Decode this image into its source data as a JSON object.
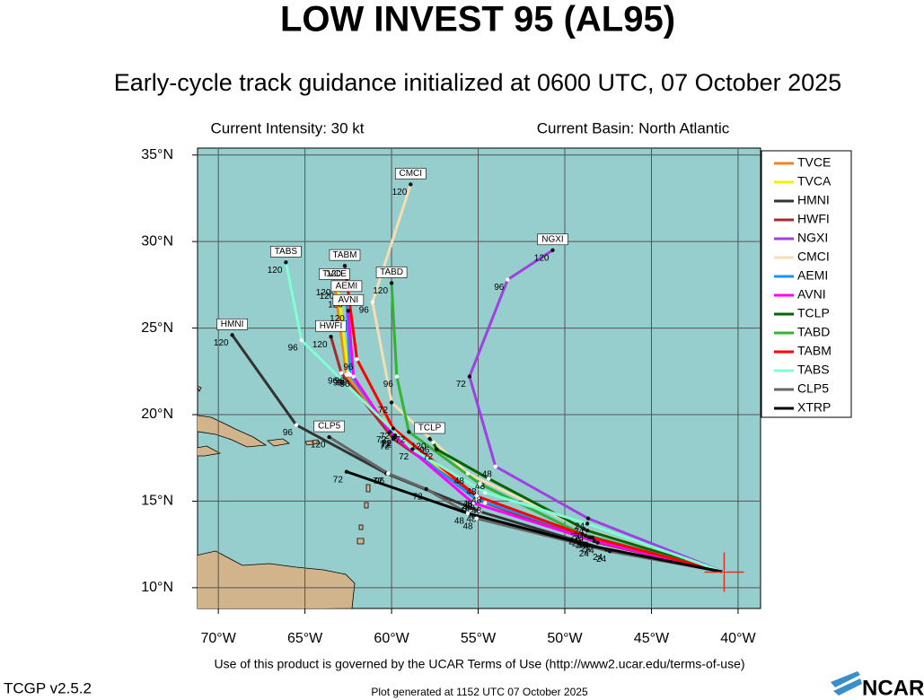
{
  "chart_data": {
    "type": "track",
    "title": "LOW INVEST 95 (AL95)",
    "subtitle": "Early-cycle track guidance initialized at 0600 UTC, 07 October 2025",
    "annotations": [
      "Current Intensity: 30 kt",
      "Current Basin: North Atlantic"
    ],
    "xlim": [
      -71.2,
      -38.7
    ],
    "ylim": [
      8.8,
      35.4
    ],
    "xticks": [
      {
        "value": -70,
        "label": "70°W"
      },
      {
        "value": -65,
        "label": "65°W"
      },
      {
        "value": -60,
        "label": "60°W"
      },
      {
        "value": -55,
        "label": "55°W"
      },
      {
        "value": -50,
        "label": "50°W"
      },
      {
        "value": -45,
        "label": "45°W"
      },
      {
        "value": -40,
        "label": "40°W"
      }
    ],
    "yticks": [
      {
        "value": 10,
        "label": "10°N"
      },
      {
        "value": 15,
        "label": "15°N"
      },
      {
        "value": 20,
        "label": "20°N"
      },
      {
        "value": 25,
        "label": "25°N"
      },
      {
        "value": 30,
        "label": "30°N"
      },
      {
        "value": 35,
        "label": "35°N"
      }
    ],
    "grid": true,
    "point_labels": [
      null,
      24,
      48,
      72,
      96,
      120
    ],
    "series": [
      {
        "name": "TVCE",
        "color": "#e8862a",
        "end_label": true,
        "x": [
          -40.8,
          -48.6,
          -55.1,
          -59.9,
          -62.6,
          -63.3
        ],
        "values": [
          10.9,
          12.9,
          15.1,
          18.7,
          22.3,
          27.5
        ]
      },
      {
        "name": "TVCA",
        "color": "#f2f200",
        "end_label": false,
        "x": [
          -40.8,
          -48.5,
          -55.0,
          -59.8,
          -62.5,
          -63.1
        ],
        "values": [
          10.9,
          12.9,
          15.2,
          18.8,
          22.4,
          27.3
        ]
      },
      {
        "name": "HMNI",
        "color": "#333333",
        "end_label": true,
        "x": [
          -40.8,
          -47.6,
          -54.9,
          -60.3,
          -65.5,
          -69.2
        ],
        "values": [
          10.9,
          12.2,
          14.4,
          16.6,
          19.4,
          24.6
        ]
      },
      {
        "name": "HWFI",
        "color": "#a52a2a",
        "end_label": true,
        "x": [
          -40.8,
          -48.1,
          -54.6,
          -59.9,
          -62.9,
          -63.5
        ],
        "values": [
          10.9,
          12.6,
          14.9,
          18.6,
          22.4,
          24.5
        ]
      },
      {
        "name": "NGXI",
        "color": "#a040e0",
        "end_label": true,
        "x": [
          -40.8,
          -48.65,
          -54.0,
          -55.5,
          -53.3,
          -50.7
        ],
        "values": [
          10.9,
          14.0,
          17.0,
          22.2,
          27.8,
          29.5
        ]
      },
      {
        "name": "CMCI",
        "color": "#f5deb3",
        "end_label": true,
        "x": [
          -40.8,
          -48.9,
          -55.6,
          -60.0,
          -61.1,
          -58.9
        ],
        "values": [
          10.9,
          13.4,
          16.6,
          20.7,
          26.5,
          33.3
        ]
      },
      {
        "name": "AEMI",
        "color": "#1e90ff",
        "end_label": true,
        "x": [
          -40.8,
          -48.4,
          -55.1,
          -59.8,
          -62.4,
          -62.6
        ],
        "values": [
          10.9,
          12.9,
          15.1,
          18.7,
          22.3,
          26.8
        ]
      },
      {
        "name": "AVNI",
        "color": "#ff00ff",
        "end_label": true,
        "x": [
          -40.8,
          -48.3,
          -55.3,
          -60.1,
          -62.2,
          -62.5
        ],
        "values": [
          10.9,
          12.7,
          14.9,
          19.0,
          22.2,
          26.0
        ]
      },
      {
        "name": "TCLP",
        "color": "#006400",
        "end_label": true,
        "x": [
          -40.8,
          -48.7,
          -54.4,
          -57.4,
          -57.6,
          -57.8
        ],
        "values": [
          10.9,
          13.3,
          16.3,
          18.0,
          18.4,
          18.6
        ]
      },
      {
        "name": "TABD",
        "color": "#32b432",
        "end_label": true,
        "x": [
          -40.8,
          -49.0,
          -54.9,
          -59.0,
          -59.7,
          -60.0
        ],
        "values": [
          10.9,
          13.1,
          16.0,
          19.0,
          22.2,
          27.6
        ]
      },
      {
        "name": "TABM",
        "color": "#ff0000",
        "end_label": true,
        "x": [
          -40.8,
          -48.8,
          -55.1,
          -59.9,
          -62.0,
          -62.7
        ],
        "values": [
          10.9,
          13.0,
          15.3,
          19.2,
          23.2,
          28.6
        ]
      },
      {
        "name": "TABS",
        "color": "#7fffd4",
        "end_label": true,
        "x": [
          -40.8,
          -48.7,
          -54.6,
          -58.8,
          -65.2,
          -66.1
        ],
        "values": [
          10.9,
          13.7,
          15.5,
          18.0,
          24.3,
          28.8
        ]
      },
      {
        "name": "CLP5",
        "color": "#666666",
        "end_label": true,
        "x": [
          -40.8,
          -47.4,
          -55.1,
          -58.0,
          -60.2,
          -63.6
        ],
        "values": [
          10.9,
          12.1,
          14.0,
          15.7,
          16.6,
          18.7
        ]
      },
      {
        "name": "XTRP",
        "color": "#000000",
        "end_label": false,
        "x": [
          -40.8,
          -48.4,
          -55.6,
          -62.6,
          null,
          null
        ],
        "values": [
          10.9,
          12.4,
          14.3,
          16.7,
          null,
          null
        ]
      }
    ]
  },
  "footer": {
    "terms": "Use of this product is governed by the UCAR Terms of Use (http://www2.ucar.edu/terms-of-use)",
    "version": "TCGP v2.5.2",
    "generated": "Plot generated at 1152 UTC   07 October 2025",
    "logo": "NCAR"
  }
}
